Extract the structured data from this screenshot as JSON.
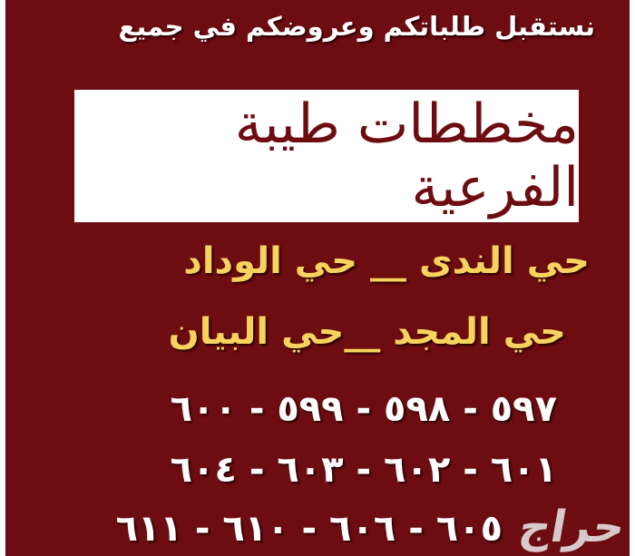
{
  "headline": "نستقبل طلباتكم وعروضكم في جميع",
  "title": "مخططات طيبة الفرعية",
  "neighborhoods": [
    "حي الندى __ حي الوداد",
    "حي المجد __حي البيان"
  ],
  "plot_numbers": [
    "٥٩٧ - ٥٩٨ - ٥٩٩ - ٦٠٠",
    "٦٠١ - ٦٠٢ - ٦٠٣ - ٦٠٤",
    "٦٠٥ - ٦٠٦ - ٦١٠ - ٦١١"
  ],
  "watermark": "حراج",
  "colors": {
    "background": "#6d0d11",
    "highlight": "#f7d35e"
  }
}
